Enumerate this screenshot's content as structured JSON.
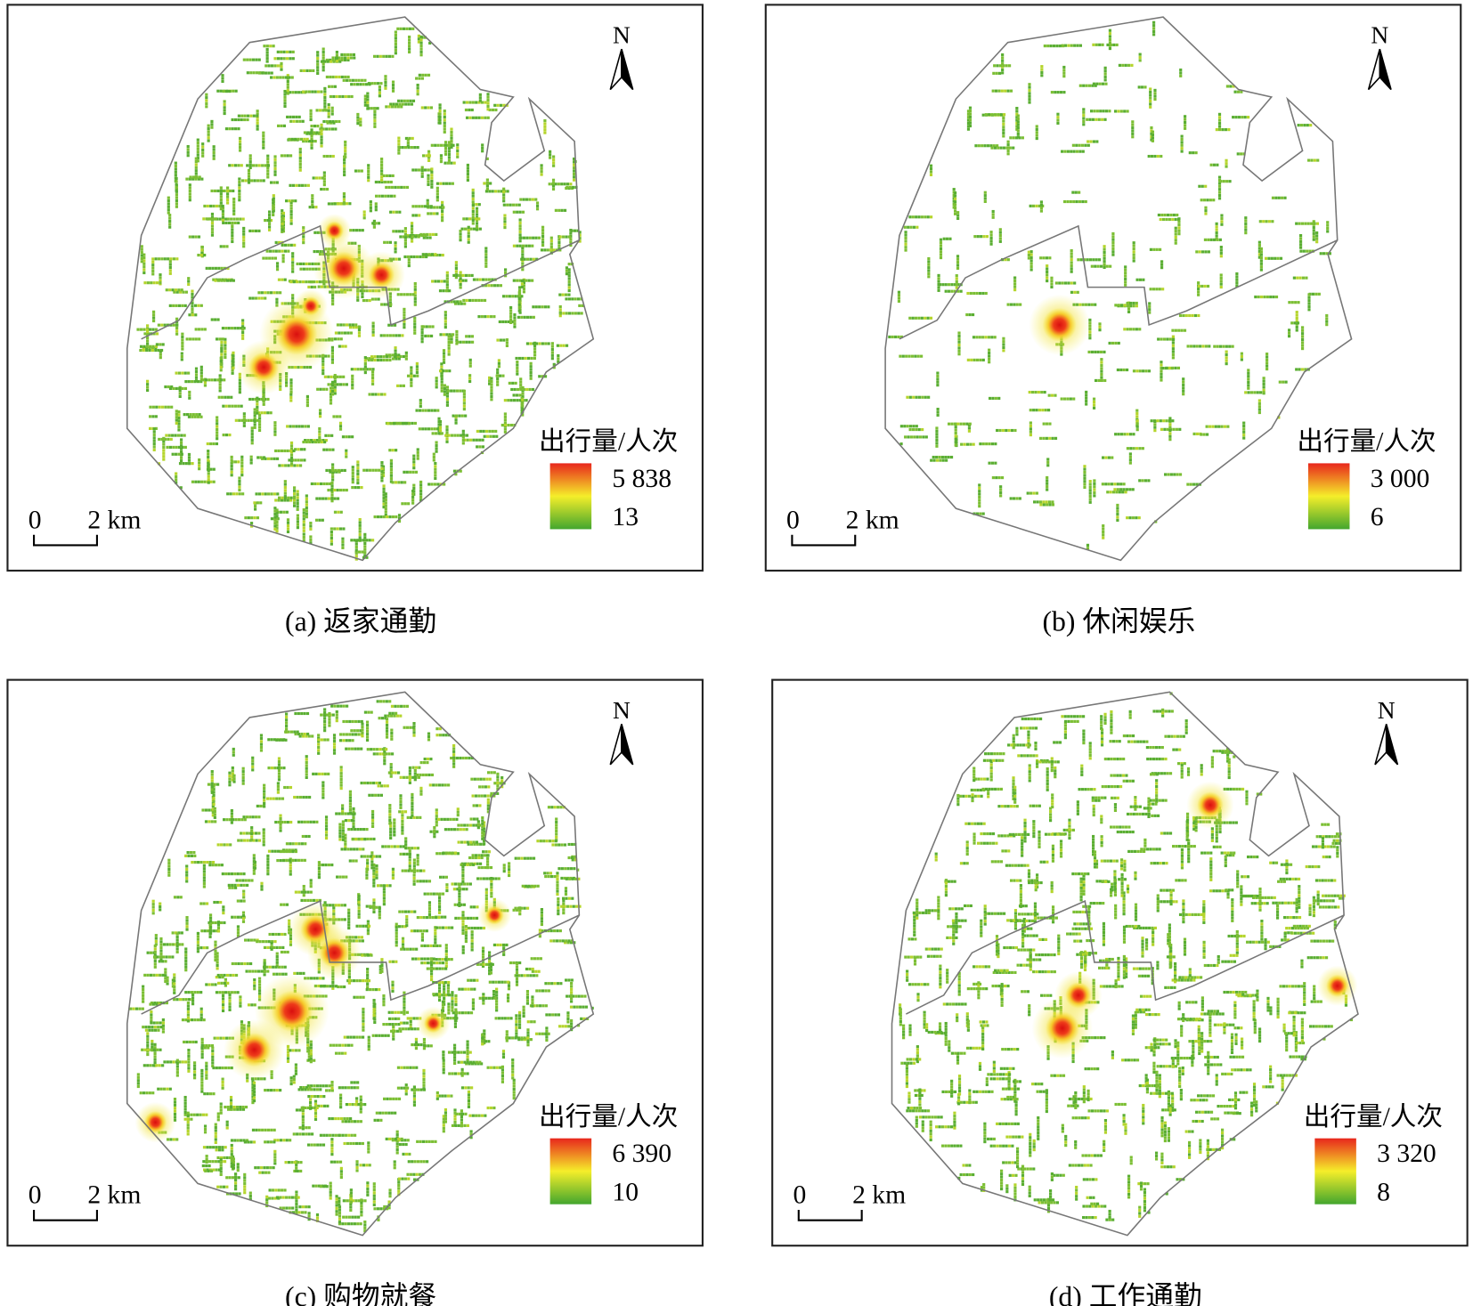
{
  "panels": [
    {
      "caption": "(a) 返家通勤",
      "legend": {
        "title": "出行量/人次",
        "max": "5 838",
        "min": "13"
      },
      "north": "N",
      "scale": {
        "start": "0",
        "end": "2 km"
      }
    },
    {
      "caption": "(b) 休闲娱乐",
      "legend": {
        "title": "出行量/人次",
        "max": "3 000",
        "min": "6"
      },
      "north": "N",
      "scale": {
        "start": "0",
        "end": "2 km"
      }
    },
    {
      "caption": "(c) 购物就餐",
      "legend": {
        "title": "出行量/人次",
        "max": "6 390",
        "min": "10"
      },
      "north": "N",
      "scale": {
        "start": "0",
        "end": "2 km"
      }
    },
    {
      "caption": "(d) 工作通勤",
      "legend": {
        "title": "出行量/人次",
        "max": "3 320",
        "min": "8"
      },
      "north": "N",
      "scale": {
        "start": "0",
        "end": "2 km"
      }
    }
  ]
}
